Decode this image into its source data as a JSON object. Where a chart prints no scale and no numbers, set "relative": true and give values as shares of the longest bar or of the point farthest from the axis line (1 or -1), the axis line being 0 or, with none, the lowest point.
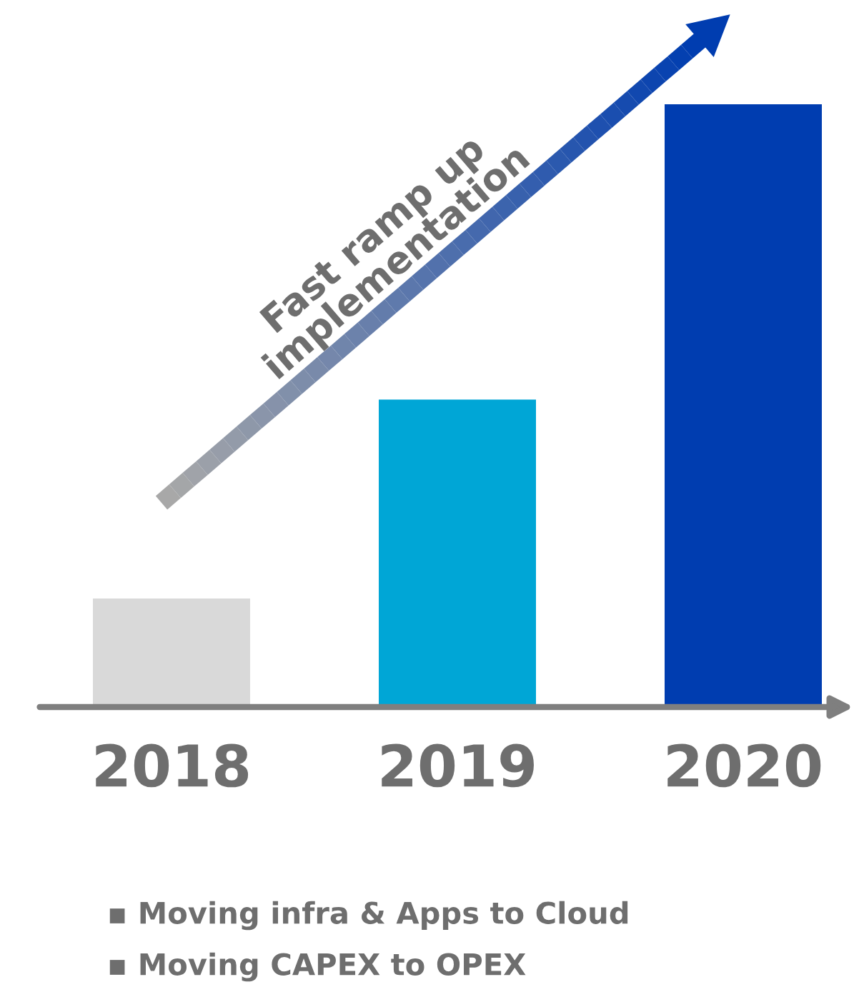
{
  "chart_data": {
    "type": "bar",
    "relative": true,
    "categories": [
      "2018",
      "2019",
      "2020"
    ],
    "values": [
      0.18,
      0.51,
      1
    ],
    "colors": [
      "#d9d9d9",
      "#00a6d6",
      "#003db0"
    ],
    "annotations": [
      "Fast ramp up implementation",
      "▪ Moving infra & Apps to Cloud",
      "▪ Moving CAPEX to OPEX"
    ]
  }
}
